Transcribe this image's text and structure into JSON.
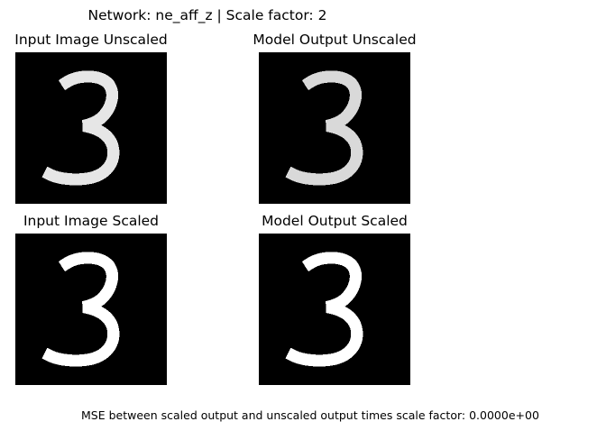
{
  "figure": {
    "suptitle": "Network: ne_aff_z | Scale factor: 2",
    "caption": "MSE between scaled output and unscaled output times scale factor: 0.0000e+00",
    "panels": [
      {
        "title": "Input Image Unscaled",
        "tone": "#e6e6e6"
      },
      {
        "title": "Model Output Unscaled",
        "tone": "#d9d9d9"
      },
      {
        "title": "Input Image Scaled",
        "tone": "#ffffff"
      },
      {
        "title": "Model Output Scaled",
        "tone": "#ffffff"
      }
    ]
  }
}
